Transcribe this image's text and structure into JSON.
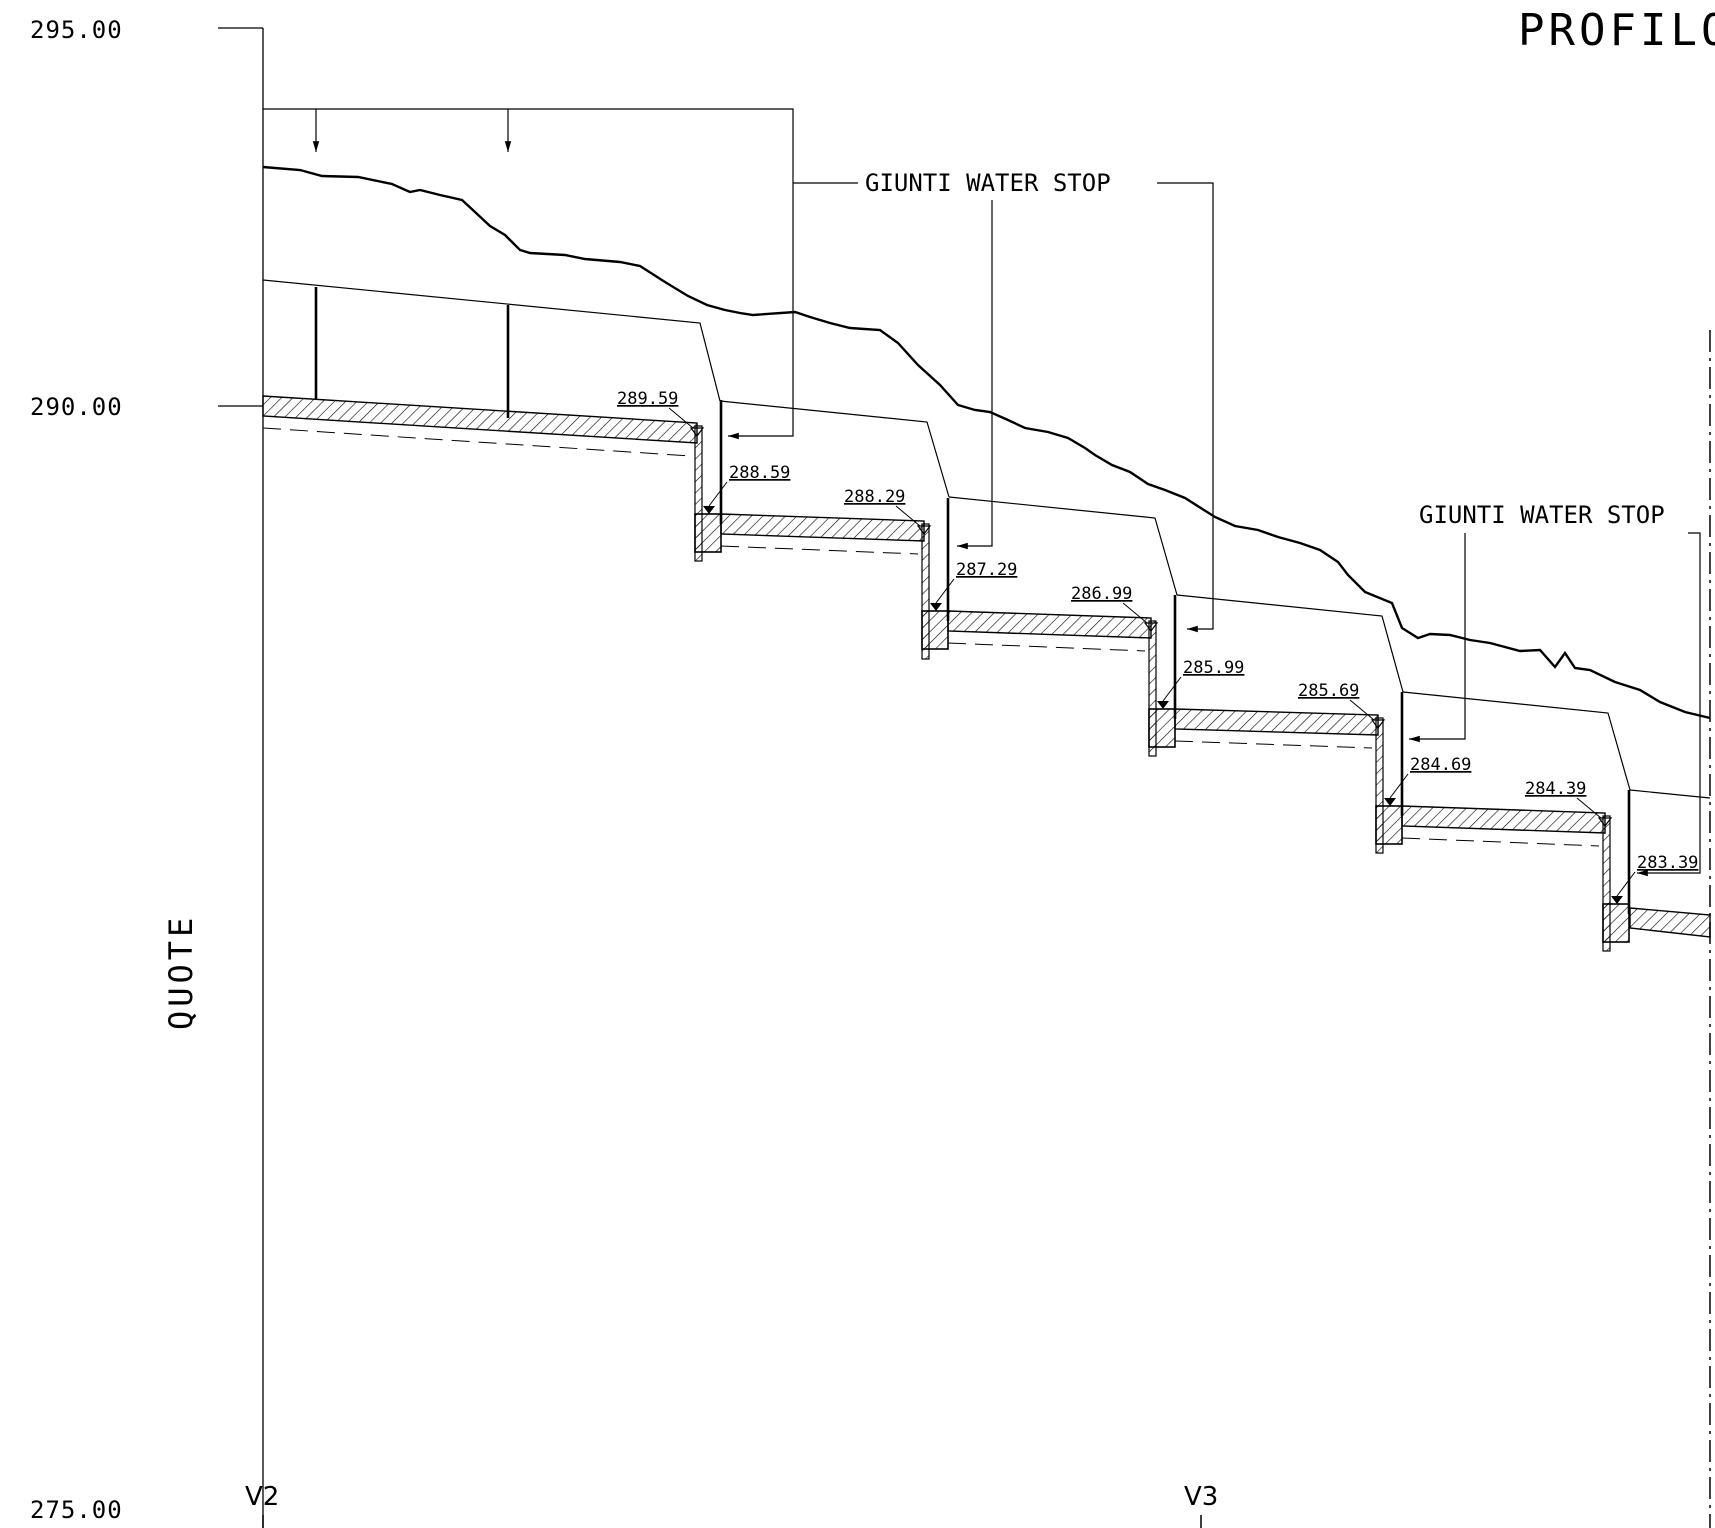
{
  "title": "PROFILO",
  "axis_label": "QUOTE",
  "elevation_axis": [
    {
      "label": "295.00"
    },
    {
      "label": "290.00"
    },
    {
      "label": "275.00"
    }
  ],
  "notes": [
    "GIUNTI WATER STOP",
    "GIUNTI WATER STOP"
  ],
  "steps": [
    {
      "top": "289.59",
      "bottom": "288.59"
    },
    {
      "top": "288.29",
      "bottom": "287.29"
    },
    {
      "top": "286.99",
      "bottom": "285.99"
    },
    {
      "top": "285.69",
      "bottom": "284.69"
    },
    {
      "top": "284.39",
      "bottom": "283.39"
    }
  ],
  "sections": [
    "V2",
    "V3"
  ]
}
